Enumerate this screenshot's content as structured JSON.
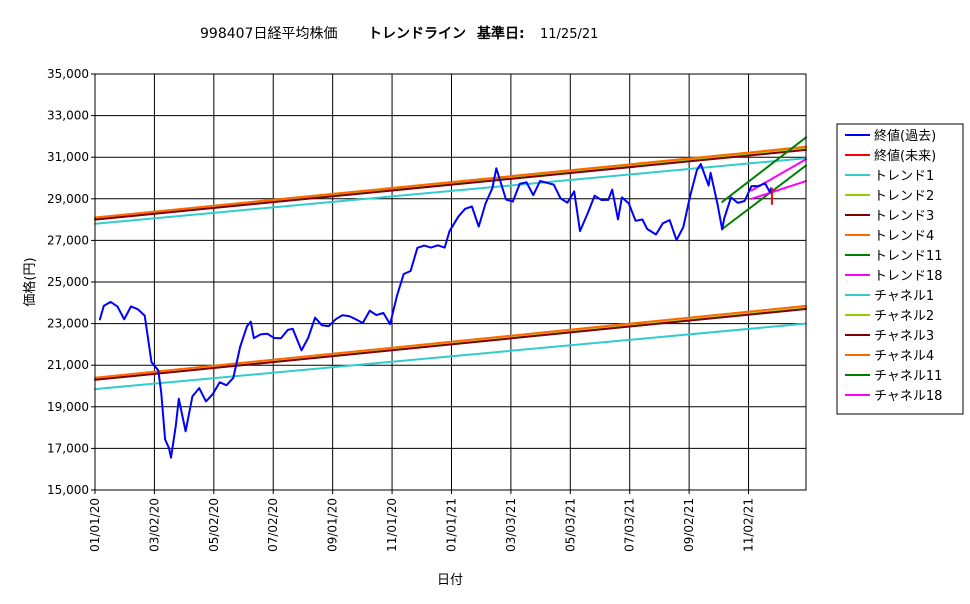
{
  "chart_data": {
    "type": "line",
    "title_main": "998407日経平均株価",
    "title_sub": "トレンドライン",
    "title_date_label": "基準日:",
    "title_date": "11/25/21",
    "xlabel": "日付",
    "ylabel": "価格(円)",
    "ylim": [
      15000,
      35000
    ],
    "ytick_values": [
      15000,
      17000,
      19000,
      21000,
      23000,
      25000,
      27000,
      29000,
      31000,
      33000,
      35000
    ],
    "ytick_labels": [
      "15,000",
      "17,000",
      "19,000",
      "21,000",
      "23,000",
      "25,000",
      "27,000",
      "29,000",
      "31,000",
      "33,000",
      "35,000"
    ],
    "x_start": "2020-01-01",
    "x_end": "2021-12-31",
    "xtick_dates": [
      "2020-01-01",
      "2020-03-02",
      "2020-05-02",
      "2020-07-02",
      "2020-09-01",
      "2020-11-01",
      "2021-01-01",
      "2021-03-03",
      "2021-05-03",
      "2021-07-03",
      "2021-09-02",
      "2021-11-02"
    ],
    "xtick_labels": [
      "01/01/20",
      "03/02/20",
      "05/02/20",
      "07/02/20",
      "09/01/20",
      "11/01/20",
      "01/01/21",
      "03/03/21",
      "05/03/21",
      "07/03/21",
      "09/02/21",
      "11/02/21"
    ],
    "grid": true,
    "legend_position": "right",
    "series": [
      {
        "name": "終値(過去)",
        "color": "#0000ff",
        "width": 2,
        "points": [
          [
            "2020-01-06",
            23204
          ],
          [
            "2020-01-10",
            23850
          ],
          [
            "2020-01-17",
            24041
          ],
          [
            "2020-01-24",
            23827
          ],
          [
            "2020-01-31",
            23205
          ],
          [
            "2020-02-07",
            23828
          ],
          [
            "2020-02-14",
            23688
          ],
          [
            "2020-02-21",
            23387
          ],
          [
            "2020-02-28",
            21143
          ],
          [
            "2020-03-06",
            20750
          ],
          [
            "2020-03-09",
            19698
          ],
          [
            "2020-03-13",
            17431
          ],
          [
            "2020-03-17",
            17011
          ],
          [
            "2020-03-19",
            16552
          ],
          [
            "2020-03-24",
            18092
          ],
          [
            "2020-03-27",
            19389
          ],
          [
            "2020-04-03",
            17820
          ],
          [
            "2020-04-10",
            19498
          ],
          [
            "2020-04-17",
            19897
          ],
          [
            "2020-04-24",
            19262
          ],
          [
            "2020-05-01",
            19619
          ],
          [
            "2020-05-08",
            20179
          ],
          [
            "2020-05-15",
            20037
          ],
          [
            "2020-05-22",
            20388
          ],
          [
            "2020-05-29",
            21877
          ],
          [
            "2020-06-05",
            22863
          ],
          [
            "2020-06-09",
            23091
          ],
          [
            "2020-06-12",
            22305
          ],
          [
            "2020-06-19",
            22479
          ],
          [
            "2020-06-26",
            22512
          ],
          [
            "2020-07-03",
            22306
          ],
          [
            "2020-07-10",
            22291
          ],
          [
            "2020-07-17",
            22696
          ],
          [
            "2020-07-22",
            22751
          ],
          [
            "2020-07-31",
            21710
          ],
          [
            "2020-08-07",
            22329
          ],
          [
            "2020-08-14",
            23289
          ],
          [
            "2020-08-21",
            22920
          ],
          [
            "2020-08-28",
            22882
          ],
          [
            "2020-09-04",
            23205
          ],
          [
            "2020-09-11",
            23406
          ],
          [
            "2020-09-18",
            23360
          ],
          [
            "2020-09-25",
            23204
          ],
          [
            "2020-10-02",
            23030
          ],
          [
            "2020-10-09",
            23619
          ],
          [
            "2020-10-16",
            23410
          ],
          [
            "2020-10-23",
            23516
          ],
          [
            "2020-10-30",
            22977
          ],
          [
            "2020-11-06",
            24325
          ],
          [
            "2020-11-13",
            25385
          ],
          [
            "2020-11-20",
            25527
          ],
          [
            "2020-11-27",
            26644
          ],
          [
            "2020-12-04",
            26751
          ],
          [
            "2020-12-11",
            26652
          ],
          [
            "2020-12-18",
            26763
          ],
          [
            "2020-12-25",
            26656
          ],
          [
            "2020-12-30",
            27444
          ],
          [
            "2021-01-08",
            28139
          ],
          [
            "2021-01-15",
            28519
          ],
          [
            "2021-01-22",
            28631
          ],
          [
            "2021-01-29",
            27663
          ],
          [
            "2021-02-05",
            28779
          ],
          [
            "2021-02-12",
            29520
          ],
          [
            "2021-02-16",
            30467
          ],
          [
            "2021-02-19",
            30018
          ],
          [
            "2021-02-26",
            28966
          ],
          [
            "2021-03-05",
            28864
          ],
          [
            "2021-03-12",
            29717
          ],
          [
            "2021-03-19",
            29792
          ],
          [
            "2021-03-26",
            29176
          ],
          [
            "2021-04-02",
            29854
          ],
          [
            "2021-04-09",
            29768
          ],
          [
            "2021-04-16",
            29683
          ],
          [
            "2021-04-23",
            29020
          ],
          [
            "2021-04-30",
            28812
          ],
          [
            "2021-05-07",
            29357
          ],
          [
            "2021-05-13",
            27448
          ],
          [
            "2021-05-21",
            28317
          ],
          [
            "2021-05-28",
            29149
          ],
          [
            "2021-06-04",
            28941
          ],
          [
            "2021-06-11",
            28948
          ],
          [
            "2021-06-15",
            29441
          ],
          [
            "2021-06-21",
            28010
          ],
          [
            "2021-06-25",
            29066
          ],
          [
            "2021-07-02",
            28783
          ],
          [
            "2021-07-09",
            27940
          ],
          [
            "2021-07-16",
            28003
          ],
          [
            "2021-07-21",
            27548
          ],
          [
            "2021-07-30",
            27283
          ],
          [
            "2021-08-06",
            27820
          ],
          [
            "2021-08-13",
            27977
          ],
          [
            "2021-08-20",
            27013
          ],
          [
            "2021-08-27",
            27641
          ],
          [
            "2021-09-03",
            29128
          ],
          [
            "2021-09-10",
            30381
          ],
          [
            "2021-09-14",
            30670
          ],
          [
            "2021-09-22",
            29639
          ],
          [
            "2021-09-24",
            30248
          ],
          [
            "2021-10-01",
            28771
          ],
          [
            "2021-10-06",
            27528
          ],
          [
            "2021-10-08",
            28048
          ],
          [
            "2021-10-15",
            29068
          ],
          [
            "2021-10-22",
            28805
          ],
          [
            "2021-10-29",
            28892
          ],
          [
            "2021-11-05",
            29611
          ],
          [
            "2021-11-12",
            29609
          ],
          [
            "2021-11-19",
            29745
          ],
          [
            "2021-11-24",
            29302
          ],
          [
            "2021-11-25",
            29499
          ]
        ]
      },
      {
        "name": "終値(未来)",
        "color": "#ff0000",
        "width": 2,
        "points": [
          [
            "2021-11-26",
            28751
          ],
          [
            "2021-11-26",
            29499
          ]
        ]
      },
      {
        "name": "トレンド1",
        "color": "#33cccc",
        "width": 2,
        "points": [
          [
            "2020-01-01",
            27800
          ],
          [
            "2021-12-31",
            30950
          ]
        ]
      },
      {
        "name": "トレンド2",
        "color": "#99cc00",
        "width": 2,
        "points": [
          [
            "2020-01-01",
            28050
          ],
          [
            "2021-12-31",
            31450
          ]
        ]
      },
      {
        "name": "トレンド3",
        "color": "#800000",
        "width": 2,
        "points": [
          [
            "2020-01-01",
            28000
          ],
          [
            "2021-12-31",
            31350
          ]
        ]
      },
      {
        "name": "トレンド4",
        "color": "#ff6600",
        "width": 2,
        "points": [
          [
            "2020-01-01",
            28100
          ],
          [
            "2021-12-31",
            31500
          ]
        ]
      },
      {
        "name": "トレンド11",
        "color": "#008000",
        "width": 2,
        "points": [
          [
            "2021-10-06",
            28850
          ],
          [
            "2021-12-31",
            31950
          ]
        ]
      },
      {
        "name": "トレンド18",
        "color": "#ff00ff",
        "width": 2,
        "points": [
          [
            "2021-11-05",
            29400
          ],
          [
            "2021-12-31",
            30900
          ]
        ]
      },
      {
        "name": "チャネル1",
        "color": "#33cccc",
        "width": 2,
        "points": [
          [
            "2020-01-01",
            19850
          ],
          [
            "2021-12-31",
            23000
          ]
        ]
      },
      {
        "name": "チャネル2",
        "color": "#99cc00",
        "width": 2,
        "points": [
          [
            "2020-01-01",
            20300
          ],
          [
            "2021-12-31",
            23750
          ]
        ]
      },
      {
        "name": "チャネル3",
        "color": "#800000",
        "width": 2,
        "points": [
          [
            "2020-01-01",
            20300
          ],
          [
            "2021-12-31",
            23700
          ]
        ]
      },
      {
        "name": "チャネル4",
        "color": "#ff6600",
        "width": 2,
        "points": [
          [
            "2020-01-01",
            20400
          ],
          [
            "2021-12-31",
            23850
          ]
        ]
      },
      {
        "name": "チャネル11",
        "color": "#008000",
        "width": 2,
        "points": [
          [
            "2021-10-06",
            27550
          ],
          [
            "2021-12-31",
            30600
          ]
        ]
      },
      {
        "name": "チャネル18",
        "color": "#ff00ff",
        "width": 2,
        "points": [
          [
            "2021-11-05",
            29000
          ],
          [
            "2021-12-31",
            29850
          ]
        ]
      }
    ]
  }
}
